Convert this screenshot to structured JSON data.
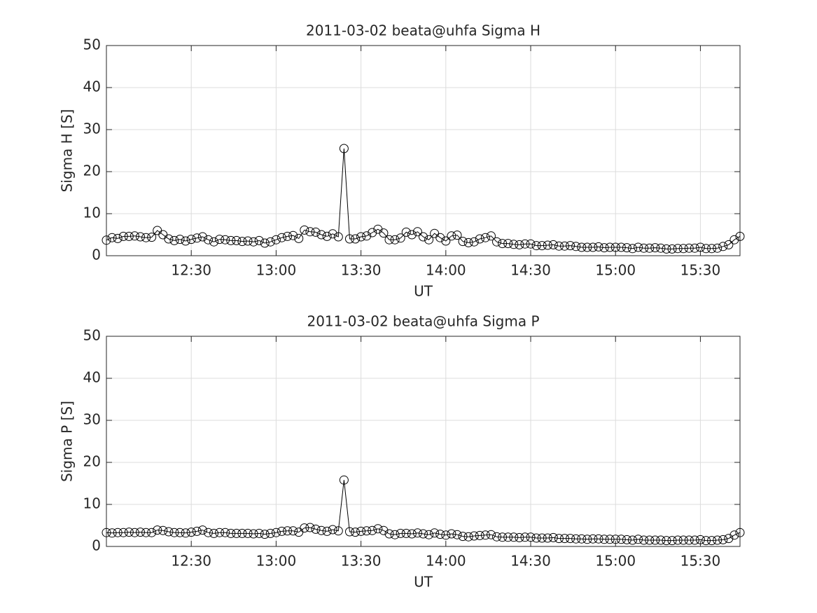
{
  "chart_data": [
    {
      "type": "line",
      "title": "2011-03-02  beata@uhfa Sigma H",
      "xlabel": "UT",
      "ylabel": "Sigma H [S]",
      "color": "#000000",
      "marker": "circle",
      "grid": true,
      "x": [
        "12:00",
        "12:02",
        "12:04",
        "12:06",
        "12:08",
        "12:10",
        "12:12",
        "12:14",
        "12:16",
        "12:18",
        "12:20",
        "12:22",
        "12:24",
        "12:26",
        "12:28",
        "12:30",
        "12:32",
        "12:34",
        "12:36",
        "12:38",
        "12:40",
        "12:42",
        "12:44",
        "12:46",
        "12:48",
        "12:50",
        "12:52",
        "12:54",
        "12:56",
        "12:58",
        "13:00",
        "13:02",
        "13:04",
        "13:06",
        "13:08",
        "13:10",
        "13:12",
        "13:14",
        "13:16",
        "13:18",
        "13:20",
        "13:22",
        "13:24",
        "13:26",
        "13:28",
        "13:30",
        "13:32",
        "13:34",
        "13:36",
        "13:38",
        "13:40",
        "13:42",
        "13:44",
        "13:46",
        "13:48",
        "13:50",
        "13:52",
        "13:54",
        "13:56",
        "13:58",
        "14:00",
        "14:02",
        "14:04",
        "14:06",
        "14:08",
        "14:10",
        "14:12",
        "14:14",
        "14:16",
        "14:18",
        "14:20",
        "14:22",
        "14:24",
        "14:26",
        "14:28",
        "14:30",
        "14:32",
        "14:34",
        "14:36",
        "14:38",
        "14:40",
        "14:42",
        "14:44",
        "14:46",
        "14:48",
        "14:50",
        "14:52",
        "14:54",
        "14:56",
        "14:58",
        "15:00",
        "15:02",
        "15:04",
        "15:06",
        "15:08",
        "15:10",
        "15:12",
        "15:14",
        "15:16",
        "15:18",
        "15:20",
        "15:22",
        "15:24",
        "15:26",
        "15:28",
        "15:30",
        "15:32",
        "15:34",
        "15:36",
        "15:38",
        "15:40",
        "15:42",
        "15:44"
      ],
      "values": [
        3.7,
        4.3,
        4.1,
        4.6,
        4.6,
        4.7,
        4.5,
        4.3,
        4.4,
        6.0,
        5.0,
        4.0,
        3.6,
        3.9,
        3.5,
        3.9,
        4.2,
        4.5,
        3.8,
        3.3,
        3.9,
        3.8,
        3.6,
        3.6,
        3.4,
        3.5,
        3.3,
        3.6,
        3.0,
        3.3,
        3.8,
        4.3,
        4.6,
        4.8,
        4.1,
        6.1,
        5.7,
        5.6,
        5.0,
        4.6,
        5.2,
        4.5,
        25.5,
        4.0,
        4.0,
        4.5,
        4.7,
        5.5,
        6.3,
        5.4,
        3.8,
        3.8,
        4.2,
        5.6,
        5.0,
        5.7,
        4.5,
        3.8,
        5.3,
        4.3,
        3.5,
        4.7,
        4.9,
        3.4,
        3.1,
        3.3,
        4.0,
        4.3,
        4.7,
        3.3,
        2.9,
        2.9,
        2.7,
        2.6,
        2.8,
        2.8,
        2.4,
        2.4,
        2.5,
        2.6,
        2.3,
        2.3,
        2.4,
        2.2,
        2.0,
        2.0,
        2.0,
        2.1,
        1.9,
        2.0,
        2.0,
        2.0,
        1.9,
        1.7,
        2.0,
        1.8,
        1.8,
        1.9,
        1.8,
        1.6,
        1.6,
        1.7,
        1.7,
        1.8,
        1.8,
        2.0,
        1.7,
        1.7,
        1.8,
        2.2,
        2.6,
        3.8,
        4.6
      ],
      "xlim": [
        "12:00",
        "15:44"
      ],
      "xticks": [
        "12:30",
        "13:00",
        "13:30",
        "14:00",
        "14:30",
        "15:00",
        "15:30"
      ],
      "ylim": [
        0,
        50
      ],
      "yticks": [
        0,
        10,
        20,
        30,
        40,
        50
      ]
    },
    {
      "type": "line",
      "title": "2011-03-02  beata@uhfa Sigma P",
      "xlabel": "UT",
      "ylabel": "Sigma P [S]",
      "color": "#000000",
      "marker": "circle",
      "grid": true,
      "x": [
        "12:00",
        "12:02",
        "12:04",
        "12:06",
        "12:08",
        "12:10",
        "12:12",
        "12:14",
        "12:16",
        "12:18",
        "12:20",
        "12:22",
        "12:24",
        "12:26",
        "12:28",
        "12:30",
        "12:32",
        "12:34",
        "12:36",
        "12:38",
        "12:40",
        "12:42",
        "12:44",
        "12:46",
        "12:48",
        "12:50",
        "12:52",
        "12:54",
        "12:56",
        "12:58",
        "13:00",
        "13:02",
        "13:04",
        "13:06",
        "13:08",
        "13:10",
        "13:12",
        "13:14",
        "13:16",
        "13:18",
        "13:20",
        "13:22",
        "13:24",
        "13:26",
        "13:28",
        "13:30",
        "13:32",
        "13:34",
        "13:36",
        "13:38",
        "13:40",
        "13:42",
        "13:44",
        "13:46",
        "13:48",
        "13:50",
        "13:52",
        "13:54",
        "13:56",
        "13:58",
        "14:00",
        "14:02",
        "14:04",
        "14:06",
        "14:08",
        "14:10",
        "14:12",
        "14:14",
        "14:16",
        "14:18",
        "14:20",
        "14:22",
        "14:24",
        "14:26",
        "14:28",
        "14:30",
        "14:32",
        "14:34",
        "14:36",
        "14:38",
        "14:40",
        "14:42",
        "14:44",
        "14:46",
        "14:48",
        "14:50",
        "14:52",
        "14:54",
        "14:56",
        "14:58",
        "15:00",
        "15:02",
        "15:04",
        "15:06",
        "15:08",
        "15:10",
        "15:12",
        "15:14",
        "15:16",
        "15:18",
        "15:20",
        "15:22",
        "15:24",
        "15:26",
        "15:28",
        "15:30",
        "15:32",
        "15:34",
        "15:36",
        "15:38",
        "15:40",
        "15:42",
        "15:44"
      ],
      "values": [
        3.3,
        3.2,
        3.3,
        3.3,
        3.4,
        3.3,
        3.4,
        3.3,
        3.3,
        3.9,
        3.8,
        3.5,
        3.3,
        3.3,
        3.2,
        3.4,
        3.6,
        3.9,
        3.3,
        3.1,
        3.3,
        3.3,
        3.1,
        3.1,
        3.1,
        3.1,
        3.0,
        3.1,
        2.9,
        3.1,
        3.3,
        3.6,
        3.7,
        3.7,
        3.4,
        4.4,
        4.5,
        4.1,
        3.8,
        3.6,
        4.0,
        3.7,
        15.8,
        3.5,
        3.4,
        3.6,
        3.7,
        3.8,
        4.2,
        3.8,
        3.0,
        2.8,
        3.1,
        3.1,
        3.0,
        3.2,
        3.0,
        2.8,
        3.2,
        2.9,
        2.7,
        3.0,
        2.8,
        2.4,
        2.3,
        2.5,
        2.6,
        2.7,
        2.8,
        2.3,
        2.2,
        2.2,
        2.2,
        2.1,
        2.2,
        2.2,
        2.0,
        2.0,
        2.0,
        2.1,
        1.9,
        1.9,
        1.9,
        1.8,
        1.8,
        1.7,
        1.8,
        1.8,
        1.7,
        1.7,
        1.7,
        1.7,
        1.6,
        1.5,
        1.7,
        1.5,
        1.5,
        1.5,
        1.5,
        1.4,
        1.4,
        1.5,
        1.5,
        1.5,
        1.5,
        1.6,
        1.4,
        1.4,
        1.5,
        1.6,
        1.9,
        2.7,
        3.3
      ],
      "xlim": [
        "12:00",
        "15:44"
      ],
      "xticks": [
        "12:30",
        "13:00",
        "13:30",
        "14:00",
        "14:30",
        "15:00",
        "15:30"
      ],
      "ylim": [
        0,
        50
      ],
      "yticks": [
        0,
        10,
        20,
        30,
        40,
        50
      ]
    }
  ]
}
